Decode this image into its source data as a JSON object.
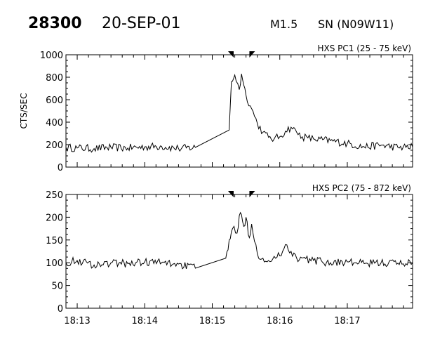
{
  "header": {
    "id": "28300",
    "date": "20-SEP-01",
    "flare_class": "M1.5",
    "location": "SN (N09W11)"
  },
  "chart_data": [
    {
      "type": "line",
      "title": "HXS PC1 (25 - 75 keV)",
      "ylabel": "CTS/SEC",
      "xlabel": "",
      "xlim": [
        "18:12:50",
        "18:17:58"
      ],
      "ylim": [
        0,
        1000
      ],
      "yticks": [
        0,
        200,
        400,
        600,
        800,
        1000
      ],
      "xtick_labels": [
        "18:13",
        "18:14",
        "18:15",
        "18:16",
        "18:17"
      ],
      "markers": [
        "18:15:19",
        "18:15:33"
      ],
      "series": [
        {
          "x": [
            "18:12:50",
            "18:13:00",
            "18:13:15",
            "18:13:30",
            "18:13:45",
            "18:14:00",
            "18:14:15",
            "18:14:30",
            "18:14:45",
            "18:15:15",
            "18:15:17",
            "18:15:20",
            "18:15:24",
            "18:15:26",
            "18:15:28",
            "18:15:30",
            "18:15:35",
            "18:15:40",
            "18:15:45",
            "18:15:50",
            "18:15:55",
            "18:16:00",
            "18:16:05",
            "18:16:10",
            "18:16:15",
            "18:16:20",
            "18:16:25",
            "18:16:30",
            "18:16:45",
            "18:17:00",
            "18:17:15",
            "18:17:30",
            "18:17:45",
            "18:17:58"
          ],
          "y": [
            175,
            170,
            165,
            175,
            170,
            180,
            185,
            165,
            175,
            330,
            760,
            820,
            690,
            830,
            730,
            640,
            520,
            390,
            310,
            265,
            250,
            270,
            320,
            355,
            310,
            270,
            260,
            250,
            235,
            210,
            180,
            195,
            175,
            180
          ]
        }
      ]
    },
    {
      "type": "line",
      "title": "HXS PC2 (75 - 872 keV)",
      "ylabel": "",
      "xlabel": "",
      "xlim": [
        "18:12:50",
        "18:17:58"
      ],
      "ylim": [
        0,
        250
      ],
      "yticks": [
        0,
        50,
        100,
        150,
        200,
        250
      ],
      "xtick_labels": [
        "18:13",
        "18:14",
        "18:15",
        "18:16",
        "18:17"
      ],
      "markers": [
        "18:15:19",
        "18:15:33"
      ],
      "series": [
        {
          "x": [
            "18:12:50",
            "18:13:00",
            "18:13:15",
            "18:13:30",
            "18:13:45",
            "18:14:00",
            "18:14:15",
            "18:14:30",
            "18:14:45",
            "18:15:12",
            "18:15:15",
            "18:15:18",
            "18:15:22",
            "18:15:25",
            "18:15:28",
            "18:15:30",
            "18:15:33",
            "18:15:35",
            "18:15:40",
            "18:15:45",
            "18:15:50",
            "18:16:00",
            "18:16:05",
            "18:16:10",
            "18:16:15",
            "18:16:30",
            "18:16:45",
            "18:17:00",
            "18:17:15",
            "18:17:30",
            "18:17:45",
            "18:17:58"
          ],
          "y": [
            100,
            105,
            95,
            100,
            98,
            102,
            100,
            97,
            88,
            110,
            150,
            175,
            165,
            210,
            180,
            200,
            155,
            185,
            120,
            110,
            105,
            115,
            140,
            125,
            110,
            105,
            100,
            102,
            98,
            100,
            99,
            100
          ]
        }
      ]
    }
  ]
}
